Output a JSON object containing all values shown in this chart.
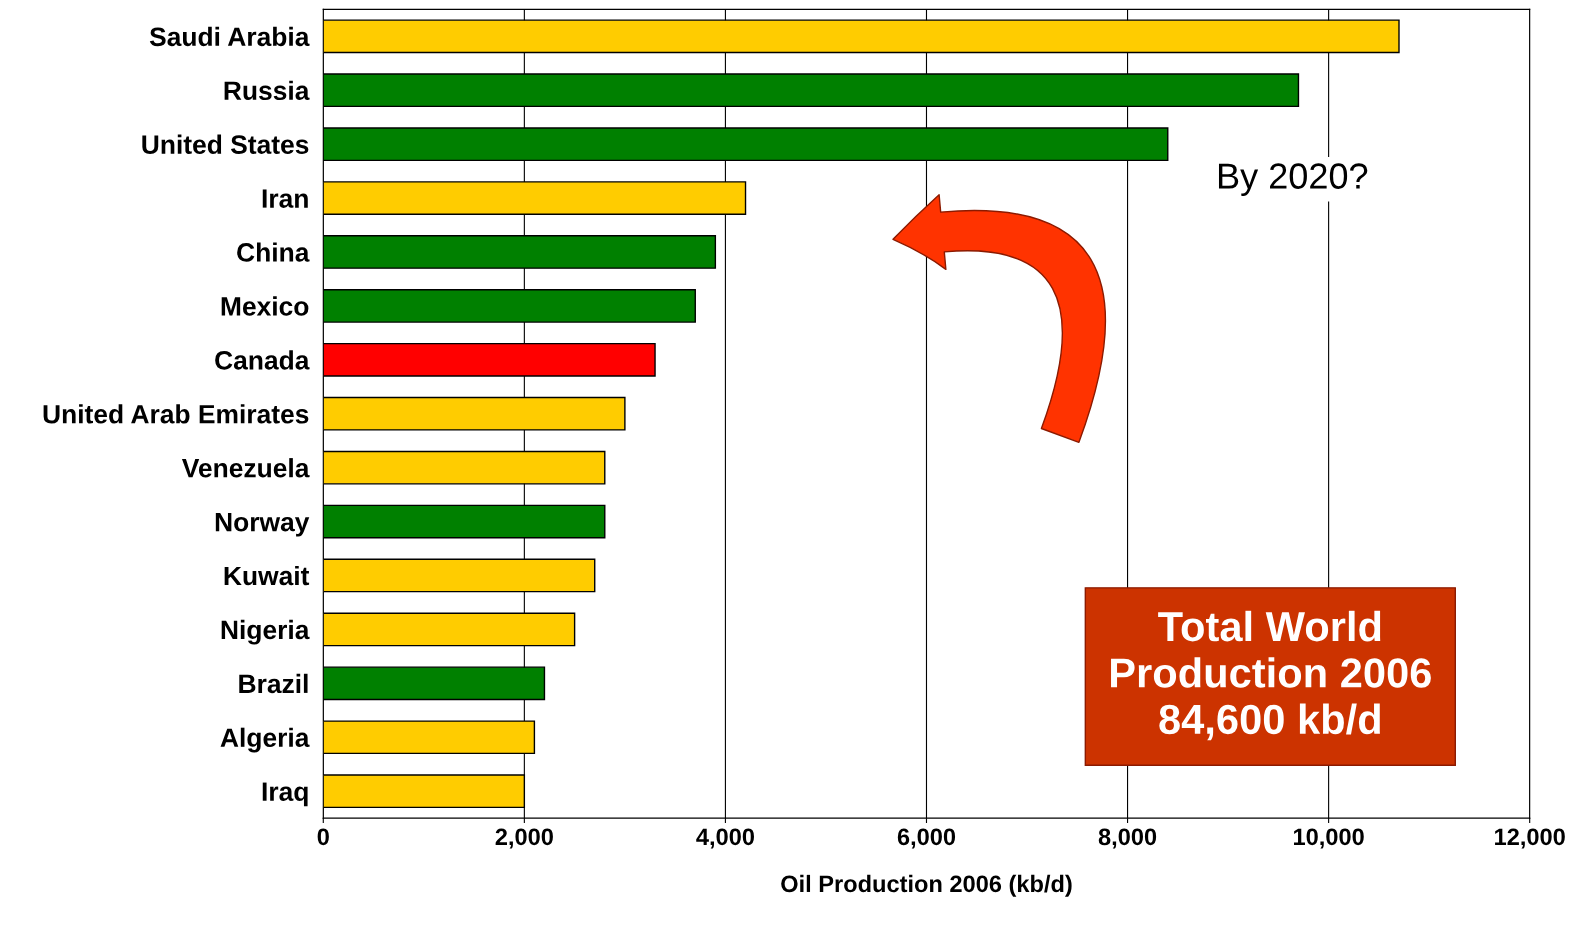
{
  "chart_data": {
    "type": "bar",
    "orientation": "horizontal",
    "xlabel": "Oil Production 2006 (kb/d)",
    "categories": [
      "Saudi Arabia",
      "Russia",
      "United States",
      "Iran",
      "China",
      "Mexico",
      "Canada",
      "United Arab Emirates",
      "Venezuela",
      "Norway",
      "Kuwait",
      "Nigeria",
      "Brazil",
      "Algeria",
      "Iraq"
    ],
    "values": [
      10700,
      9700,
      8400,
      4200,
      3900,
      3700,
      3300,
      3000,
      2800,
      2800,
      2700,
      2500,
      2200,
      2100,
      2000
    ],
    "colors": [
      "#ffcc00",
      "#008000",
      "#008000",
      "#ffcc00",
      "#008000",
      "#008000",
      "#ff0000",
      "#ffcc00",
      "#ffcc00",
      "#008000",
      "#ffcc00",
      "#ffcc00",
      "#008000",
      "#ffcc00",
      "#ffcc00"
    ],
    "xlim": [
      0,
      12000
    ],
    "xticks": [
      {
        "value": 0,
        "label": "0"
      },
      {
        "value": 2000,
        "label": "2,000"
      },
      {
        "value": 4000,
        "label": "4,000"
      },
      {
        "value": 6000,
        "label": "6,000"
      },
      {
        "value": 8000,
        "label": "8,000"
      },
      {
        "value": 10000,
        "label": "10,000"
      },
      {
        "value": 12000,
        "label": "12,000"
      }
    ],
    "grid": "x",
    "annotations": [
      "By 2020?",
      "Total World\nProduction 2006\n84,600 kb/d"
    ]
  }
}
